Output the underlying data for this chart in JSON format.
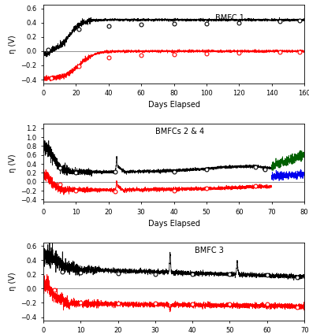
{
  "panel1": {
    "label": "BMFC 1",
    "xlim": [
      0,
      160
    ],
    "ylim": [
      -0.45,
      0.65
    ],
    "yticks": [
      -0.4,
      -0.2,
      0.0,
      0.2,
      0.4,
      0.6
    ],
    "xticks": [
      0,
      20,
      40,
      60,
      80,
      100,
      120,
      140,
      160
    ],
    "cathode_markers_x": [
      3,
      22,
      40,
      60,
      80,
      100,
      120,
      145,
      157
    ],
    "cathode_markers_y": [
      0.02,
      0.31,
      0.36,
      0.375,
      0.385,
      0.39,
      0.4,
      0.42,
      0.435
    ],
    "anode_markers_x": [
      5,
      22,
      40,
      60,
      80,
      100,
      120,
      145,
      157
    ],
    "anode_markers_y": [
      -0.38,
      -0.21,
      -0.09,
      -0.055,
      -0.04,
      -0.03,
      -0.02,
      -0.015,
      -0.01
    ]
  },
  "panel2": {
    "label": "BMFCs 2 & 4",
    "xlim": [
      0,
      80
    ],
    "ylim": [
      -0.45,
      1.3
    ],
    "yticks": [
      -0.4,
      -0.2,
      0.0,
      0.2,
      0.4,
      0.6,
      0.8,
      1.0,
      1.2
    ],
    "xticks": [
      0,
      10,
      20,
      30,
      40,
      50,
      60,
      70,
      80
    ],
    "cathode_markers_x": [
      5,
      10,
      22,
      40,
      50,
      65,
      68
    ],
    "cathode_markers_y": [
      0.32,
      0.21,
      0.22,
      0.22,
      0.27,
      0.33,
      0.27
    ],
    "anode_markers_x": [
      5,
      10,
      22,
      40,
      50,
      65
    ],
    "anode_markers_y": [
      -0.05,
      -0.2,
      -0.22,
      -0.2,
      -0.14,
      -0.1
    ]
  },
  "panel3": {
    "label": "BMFC 3",
    "xlim": [
      0,
      70
    ],
    "ylim": [
      -0.45,
      0.65
    ],
    "yticks": [
      -0.4,
      -0.2,
      0.0,
      0.2,
      0.4,
      0.6
    ],
    "xticks": [
      0,
      10,
      20,
      30,
      40,
      50,
      60,
      70
    ],
    "cathode_markers_x": [
      5,
      10,
      20,
      30,
      40,
      50,
      60,
      68
    ],
    "cathode_markers_y": [
      0.235,
      0.225,
      0.215,
      0.205,
      0.205,
      0.205,
      0.19,
      0.165
    ],
    "anode_markers_x": [
      3,
      10,
      20,
      30,
      40,
      50,
      60,
      68
    ],
    "anode_markers_y": [
      -0.02,
      -0.2,
      -0.205,
      -0.21,
      -0.215,
      -0.215,
      -0.22,
      -0.26
    ]
  },
  "black_color": "#000000",
  "red_color": "#ff0000",
  "blue_color": "#0000ee",
  "green_color": "#006000",
  "gray_color": "#808080",
  "xlabel": "Days Elapsed",
  "ylabel": "η (V)",
  "background": "#ffffff"
}
